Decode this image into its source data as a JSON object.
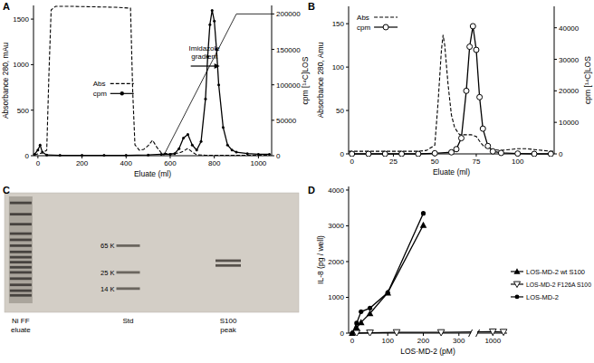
{
  "chart_data": [
    {
      "type": "line",
      "title": "A",
      "x_label": "Eluate (ml)",
      "y_label": "Absorbance 280, mAu",
      "y2_label": "cpm [¹⁴C]LOS",
      "xlim": [
        -20,
        1060
      ],
      "xticks": [
        0,
        200,
        400,
        600,
        800,
        1000
      ],
      "ylim": [
        0,
        1650
      ],
      "yticks": [
        0,
        500,
        1000,
        1500
      ],
      "y2lim": [
        0,
        212000
      ],
      "y2ticks": [
        0,
        50000,
        100000,
        150000,
        200000
      ],
      "legend": "center left",
      "series": [
        {
          "name": "Abs",
          "color": "#000000",
          "line_style": "dashed",
          "marker": "none",
          "x": [
            -15,
            0,
            20,
            40,
            50,
            60,
            80,
            150,
            250,
            350,
            420,
            430,
            440,
            460,
            480,
            500,
            520,
            540,
            560,
            600,
            640,
            660,
            680,
            700,
            720,
            760,
            800,
            850,
            900,
            1000,
            1050
          ],
          "values": [
            10,
            20,
            30,
            60,
            900,
            1600,
            1640,
            1640,
            1635,
            1630,
            1620,
            700,
            120,
            60,
            70,
            110,
            170,
            90,
            30,
            20,
            30,
            50,
            80,
            40,
            10,
            5,
            5,
            5,
            5,
            5,
            5
          ]
        },
        {
          "name": "cpm",
          "color": "#000000",
          "line_style": "solid",
          "marker": "circle",
          "axis": "y2",
          "x": [
            -15,
            0,
            10,
            20,
            40,
            100,
            200,
            300,
            400,
            500,
            560,
            600,
            620,
            640,
            660,
            680,
            700,
            720,
            740,
            760,
            770,
            780,
            790,
            800,
            810,
            820,
            840,
            860,
            880,
            900,
            950,
            1000,
            1050
          ],
          "values": [
            2000,
            8000,
            15000,
            5000,
            1000,
            500,
            500,
            500,
            500,
            1000,
            2000,
            2000,
            3000,
            10000,
            25000,
            30000,
            15000,
            8000,
            20000,
            80000,
            140000,
            185000,
            205000,
            190000,
            150000,
            100000,
            40000,
            15000,
            8000,
            5000,
            3000,
            2000,
            2000
          ]
        }
      ],
      "annotations": [
        {
          "text": "Imidazole gradient",
          "axis": "y2",
          "line_x": [
            570,
            900,
            1060
          ],
          "line_y": [
            0,
            200000,
            200000
          ]
        }
      ]
    },
    {
      "type": "line",
      "title": "B",
      "x_label": "Eluate (ml)",
      "y_label": "Absorbance 280, Amu",
      "y2_label": "cpm [¹⁴C]LOS",
      "xlim": [
        -2,
        122
      ],
      "xticks": [
        0,
        25,
        50,
        75,
        100
      ],
      "ylim": [
        0,
        170
      ],
      "yticks": [
        0,
        50,
        100,
        150
      ],
      "y2lim": [
        0,
        46800
      ],
      "y2ticks": [
        0,
        10000,
        20000,
        30000,
        40000
      ],
      "legend": "upper left",
      "series": [
        {
          "name": "Abs",
          "color": "#000000",
          "line_style": "dashed",
          "marker": "none",
          "x": [
            -2,
            0,
            10,
            20,
            30,
            40,
            45,
            50,
            52,
            54,
            55,
            56,
            58,
            60,
            62,
            65,
            68,
            70,
            72,
            75,
            78,
            80,
            85,
            90,
            95,
            100,
            105,
            110,
            115,
            120,
            122
          ],
          "values": [
            3,
            3,
            3,
            3,
            3,
            3,
            4,
            10,
            60,
            120,
            137,
            125,
            80,
            45,
            30,
            22,
            22,
            22,
            22,
            20,
            12,
            8,
            5,
            4,
            5,
            6,
            6,
            5,
            4,
            3,
            3
          ]
        },
        {
          "name": "cpm",
          "color": "#000000",
          "line_style": "solid",
          "marker": "open_circle",
          "axis": "y2",
          "x": [
            0,
            10,
            20,
            30,
            40,
            50,
            60,
            63,
            66,
            69,
            71,
            73,
            75,
            77,
            79,
            82,
            85,
            90,
            100,
            110,
            120
          ],
          "values": [
            0,
            0,
            0,
            0,
            0,
            200,
            500,
            1500,
            5000,
            20000,
            34000,
            40500,
            33000,
            18000,
            8000,
            2500,
            800,
            300,
            100,
            0,
            0
          ]
        }
      ]
    },
    {
      "type": "gel",
      "title": "C",
      "categories": [
        "Ni FF eluate",
        "Std",
        "S100 peak"
      ],
      "bands": [
        [
          300,
          200,
          140,
          100,
          80,
          65,
          52,
          43,
          36,
          30,
          25,
          20,
          16,
          13,
          11
        ],
        [
          65,
          25,
          14
        ],
        [
          38,
          32
        ]
      ],
      "log": "y",
      "ylim": [
        6,
        430
      ],
      "yticks": [
        {
          "value": 65,
          "label": "65 K"
        },
        {
          "value": 25,
          "label": "25 K"
        },
        {
          "value": 14,
          "label": "14 K"
        }
      ]
    },
    {
      "type": "line",
      "title": "D",
      "x_label": "LOS·MD-2 (pM)",
      "y_label": "IL-8 (pg / well)",
      "xlim": [
        -10,
        1040
      ],
      "xbreak": [
        330,
        960
      ],
      "xticks": [
        0,
        100,
        200,
        300,
        1000
      ],
      "ylim": [
        0,
        4100
      ],
      "yticks": [
        0,
        1000,
        2000,
        3000,
        4000
      ],
      "legend": "right",
      "series": [
        {
          "name": "LOS-MD-2 wt S100",
          "color": "#000000",
          "line_style": "solid",
          "marker": "triangle",
          "x": [
            0,
            12.5,
            25,
            50,
            100,
            200
          ],
          "values": [
            0,
            150,
            300,
            550,
            1130,
            3020
          ]
        },
        {
          "name": "LOS-MD-2 F126A S100",
          "color": "#000000",
          "line_style": "solid",
          "marker": "open_triangle_down",
          "x": [
            12.5,
            50,
            125,
            250,
            1000,
            1030
          ],
          "values": [
            0,
            10,
            20,
            20,
            40,
            30
          ]
        },
        {
          "name": "LOS-MD-2",
          "color": "#000000",
          "line_style": "solid",
          "marker": "circle",
          "x": [
            0,
            12.5,
            25,
            50,
            100,
            200
          ],
          "values": [
            0,
            280,
            600,
            700,
            1130,
            3350
          ]
        }
      ]
    }
  ]
}
